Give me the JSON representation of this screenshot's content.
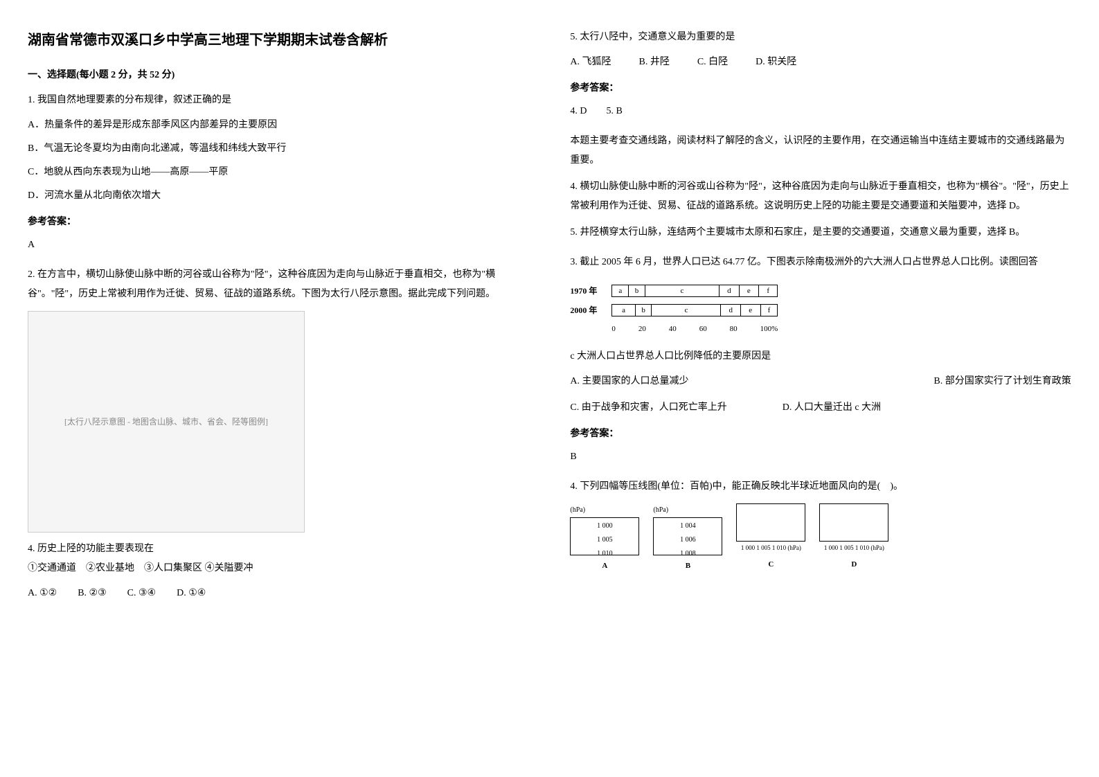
{
  "title": "湖南省常德市双溪口乡中学高三地理下学期期末试卷含解析",
  "section1": {
    "header": "一、选择题(每小题 2 分，共 52 分)"
  },
  "q1": {
    "stem": "1. 我国自然地理要素的分布规律，叙述正确的是",
    "optA": "A．热量条件的差异是形成东部季风区内部差异的主要原因",
    "optB": "B．气温无论冬夏均为由南向北递减，等温线和纬线大致平行",
    "optC": "C．地貌从西向东表现为山地——高原——平原",
    "optD": "D．河流水量从北向南依次增大",
    "answerLabel": "参考答案：",
    "answer": "A"
  },
  "q2": {
    "stem": "2. 在方言中，横切山脉使山脉中断的河谷或山谷称为\"陉\"，这种谷底因为走向与山脉近于垂直相交，也称为\"横谷\"。\"陉\"，历史上常被利用作为迁徙、贸易、征战的道路系统。下图为太行八陉示意图。据此完成下列问题。",
    "mapPlaceholder": "[太行八陉示意图 - 地图含山脉、城市、省会、陉等图例]",
    "q4stem": "4. 历史上陉的功能主要表现在",
    "q4subs": "①交通通道　②农业基地　③人口集聚区 ④关隘要冲",
    "q4A": "A. ①②",
    "q4B": "B. ②③",
    "q4C": "C. ③④",
    "q4D": "D. ①④"
  },
  "q5": {
    "stem": "5. 太行八陉中，交通意义最为重要的是",
    "optA": "A. 飞狐陉",
    "optB": "B. 井陉",
    "optC": "C. 白陉",
    "optD": "D. 轵关陉",
    "answerLabel": "参考答案：",
    "answer45": "4. D　　5. B",
    "explain1": "本题主要考查交通线路，阅读材料了解陉的含义，认识陉的主要作用，在交通运输当中连结主要城市的交通线路最为重要。",
    "explain2": "4. 横切山脉使山脉中断的河谷或山谷称为\"陉\"，这种谷底因为走向与山脉近于垂直相交，也称为\"横谷\"。\"陉\"，历史上常被利用作为迁徙、贸易、征战的道路系统。这说明历史上陉的功能主要是交通要道和关隘要冲，选择 D。",
    "explain3": "5. 井陉横穿太行山脉，连结两个主要城市太原和石家庄，是主要的交通要道，交通意义最为重要，选择 B。"
  },
  "q3": {
    "stem": "3. 截止 2005 年 6 月，世界人口已达 64.77 亿。下图表示除南极洲外的六大洲人口占世界总人口比例。读图回答",
    "chart": {
      "year1": "1970 年",
      "year2": "2000 年",
      "segments": [
        "a",
        "b",
        "c",
        "d",
        "e",
        "f"
      ],
      "axis": [
        "0",
        "20",
        "40",
        "60",
        "80",
        "100%"
      ],
      "widths1970": [
        10,
        10,
        45,
        12,
        12,
        11
      ],
      "widths2000": [
        14,
        10,
        42,
        12,
        12,
        10
      ]
    },
    "subq": "c 大洲人口占世界总人口比例降低的主要原因是",
    "optA": "A. 主要国家的人口总量减少",
    "optB": "B. 部分国家实行了计划生育政策",
    "optC": "C. 由于战争和灾害，人口死亡率上升",
    "optD": "D. 人口大量迁出 c 大洲",
    "answerLabel": "参考答案：",
    "answer": "B"
  },
  "q4wind": {
    "stem": "4. 下列四幅等压线图(单位：百帕)中，能正确反映北半球近地面风向的是(　)。",
    "labels": [
      "A",
      "B",
      "C",
      "D"
    ],
    "unit": "(hPa)",
    "valsAB": [
      "1 000",
      "1 005",
      "1 010"
    ],
    "valsB": [
      "1 004",
      "1 006",
      "1 008"
    ],
    "xaxis": "1 000 1 005 1 010 (hPa)"
  }
}
